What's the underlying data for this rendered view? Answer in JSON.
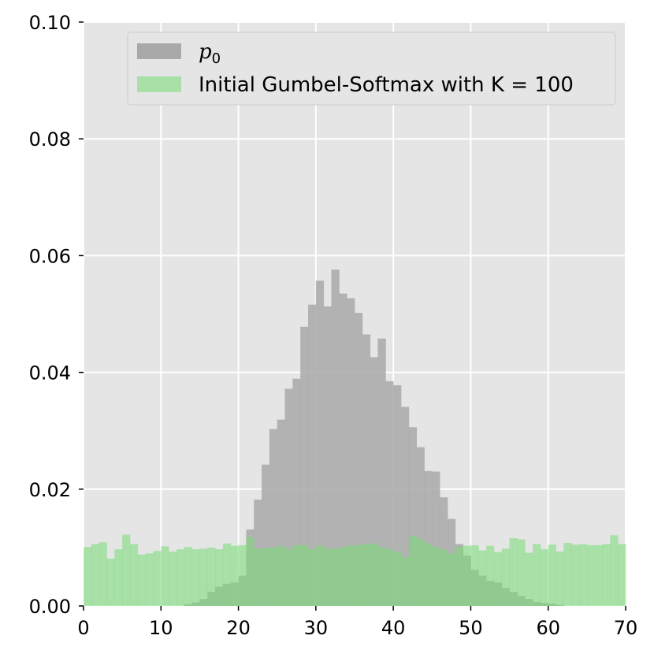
{
  "chart_data": {
    "type": "bar",
    "x_ticks": [
      "0",
      "10",
      "20",
      "30",
      "40",
      "50",
      "60",
      "70"
    ],
    "y_ticks": [
      "0.00",
      "0.02",
      "0.04",
      "0.06",
      "0.08",
      "0.10"
    ],
    "xlim": [
      0,
      70
    ],
    "ylim": [
      0,
      0.1
    ],
    "grid": true,
    "legend_position": "top-right",
    "bin_width": 1,
    "series": [
      {
        "name": "p",
        "name_subscript": "0",
        "color": "#a9a9a9",
        "bin_starts": [
          13,
          14,
          15,
          16,
          17,
          18,
          19,
          20,
          21,
          22,
          23,
          24,
          25,
          26,
          27,
          28,
          29,
          30,
          31,
          32,
          33,
          34,
          35,
          36,
          37,
          38,
          39,
          40,
          41,
          42,
          43,
          44,
          45,
          46,
          47,
          48,
          49,
          50,
          51,
          52,
          53,
          54,
          55,
          56,
          57,
          58,
          59,
          60,
          61
        ],
        "values": [
          0.0003,
          0.0006,
          0.0012,
          0.0024,
          0.0033,
          0.0038,
          0.004,
          0.0052,
          0.0131,
          0.0182,
          0.0242,
          0.0303,
          0.0319,
          0.0372,
          0.0389,
          0.0478,
          0.0516,
          0.0557,
          0.0513,
          0.0576,
          0.0535,
          0.0527,
          0.0502,
          0.0465,
          0.0426,
          0.0458,
          0.0385,
          0.0378,
          0.0341,
          0.0306,
          0.0272,
          0.0231,
          0.023,
          0.0186,
          0.0149,
          0.0106,
          0.0086,
          0.0062,
          0.0052,
          0.0043,
          0.004,
          0.0031,
          0.0024,
          0.0017,
          0.0012,
          0.0007,
          0.0005,
          0.0004,
          0.0002
        ]
      },
      {
        "name": "Initial Gumbel-Softmax with K = 100",
        "color": "#77dd77",
        "bin_starts": [
          0,
          1,
          2,
          3,
          4,
          5,
          6,
          7,
          8,
          9,
          10,
          11,
          12,
          13,
          14,
          15,
          16,
          17,
          18,
          19,
          20,
          21,
          22,
          23,
          24,
          25,
          26,
          27,
          28,
          29,
          30,
          31,
          32,
          33,
          34,
          35,
          36,
          37,
          38,
          39,
          40,
          41,
          42,
          43,
          44,
          45,
          46,
          47,
          48,
          49,
          50,
          51,
          52,
          53,
          54,
          55,
          56,
          57,
          58,
          59,
          60,
          61,
          62,
          63,
          64,
          65,
          66,
          67,
          68,
          69
        ],
        "values": [
          0.0101,
          0.0106,
          0.0109,
          0.0081,
          0.0097,
          0.0122,
          0.0106,
          0.0088,
          0.009,
          0.0094,
          0.0102,
          0.0093,
          0.0097,
          0.0101,
          0.0097,
          0.0098,
          0.01,
          0.0097,
          0.0107,
          0.0103,
          0.0104,
          0.0118,
          0.0098,
          0.0099,
          0.01,
          0.0103,
          0.0097,
          0.0104,
          0.0104,
          0.0097,
          0.0103,
          0.0099,
          0.0098,
          0.0101,
          0.0104,
          0.0104,
          0.0106,
          0.0107,
          0.0101,
          0.0097,
          0.0093,
          0.0084,
          0.012,
          0.0114,
          0.0107,
          0.0101,
          0.0096,
          0.009,
          0.0101,
          0.0103,
          0.0104,
          0.0095,
          0.0103,
          0.0092,
          0.0098,
          0.0116,
          0.0114,
          0.0091,
          0.0106,
          0.0097,
          0.0105,
          0.0093,
          0.0108,
          0.0105,
          0.0106,
          0.0104,
          0.0104,
          0.0106,
          0.0121,
          0.0106
        ]
      }
    ]
  }
}
